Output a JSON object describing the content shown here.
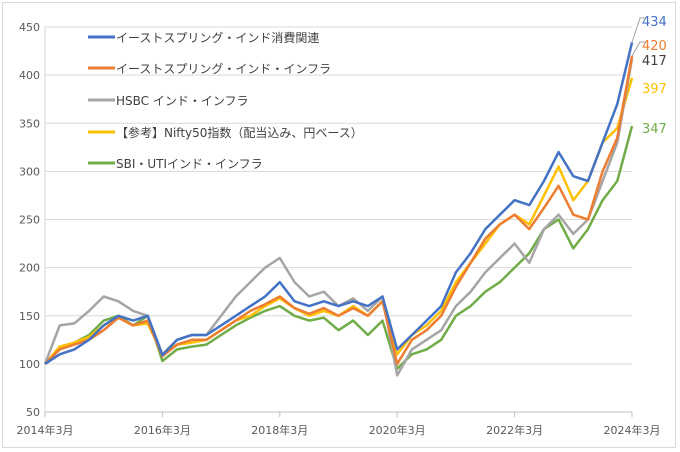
{
  "chart_data": {
    "type": "line",
    "title": "",
    "xlabel": "",
    "ylabel": "",
    "ylim": [
      50,
      450
    ],
    "yticks": [
      50,
      100,
      150,
      200,
      250,
      300,
      350,
      400,
      450
    ],
    "xtick_labels": [
      "2014年3月",
      "2016年3月",
      "2018年3月",
      "2020年3月",
      "2022年3月",
      "2024年3月"
    ],
    "x": [
      "2014-03",
      "2014-06",
      "2014-09",
      "2014-12",
      "2015-03",
      "2015-06",
      "2015-09",
      "2015-12",
      "2016-03",
      "2016-06",
      "2016-09",
      "2016-12",
      "2017-03",
      "2017-06",
      "2017-09",
      "2017-12",
      "2018-03",
      "2018-06",
      "2018-09",
      "2018-12",
      "2019-03",
      "2019-06",
      "2019-09",
      "2019-12",
      "2020-03",
      "2020-06",
      "2020-09",
      "2020-12",
      "2021-03",
      "2021-06",
      "2021-09",
      "2021-12",
      "2022-03",
      "2022-06",
      "2022-09",
      "2022-12",
      "2023-03",
      "2023-06",
      "2023-09",
      "2023-12",
      "2024-03"
    ],
    "grid": "horizontal",
    "legend_placement": "top-left",
    "series": [
      {
        "name": "イーストスプリング・インド消費関連",
        "color": "#4472c4",
        "end_label": "434",
        "values": [
          100,
          110,
          115,
          125,
          140,
          150,
          145,
          150,
          109,
          125,
          130,
          130,
          140,
          150,
          160,
          170,
          185,
          165,
          160,
          165,
          160,
          165,
          160,
          170,
          115,
          130,
          145,
          160,
          195,
          215,
          240,
          255,
          270,
          265,
          290,
          320,
          295,
          290,
          330,
          370,
          434
        ]
      },
      {
        "name": "イーストスプリング・インド・インフラ",
        "color": "#ed7d31",
        "end_label": "420",
        "values": [
          100,
          115,
          120,
          125,
          135,
          148,
          140,
          145,
          108,
          120,
          125,
          125,
          135,
          145,
          155,
          162,
          170,
          158,
          152,
          158,
          150,
          158,
          150,
          165,
          100,
          125,
          135,
          150,
          180,
          205,
          230,
          245,
          255,
          240,
          262,
          285,
          255,
          250,
          300,
          335,
          420
        ]
      },
      {
        "name": "HSBC インド・インフラ",
        "color": "#a5a5a5",
        "end_label": "417",
        "values": [
          100,
          140,
          142,
          155,
          170,
          165,
          155,
          150,
          110,
          125,
          130,
          130,
          150,
          170,
          185,
          200,
          210,
          185,
          170,
          175,
          160,
          168,
          155,
          170,
          88,
          115,
          125,
          135,
          160,
          175,
          195,
          210,
          225,
          205,
          240,
          255,
          235,
          250,
          290,
          330,
          417
        ]
      },
      {
        "name": "【参考】Nifty50指数（配当込み、円ベース）",
        "color": "#ffc000",
        "end_label": "397",
        "values": [
          100,
          118,
          122,
          128,
          140,
          148,
          140,
          142,
          110,
          120,
          122,
          125,
          135,
          145,
          150,
          160,
          168,
          158,
          150,
          155,
          150,
          160,
          150,
          165,
          110,
          130,
          140,
          155,
          185,
          205,
          225,
          245,
          255,
          245,
          275,
          305,
          270,
          290,
          330,
          345,
          397
        ]
      },
      {
        "name": "SBI・UTIインド・インフラ",
        "color": "#70ad47",
        "end_label": "347",
        "values": [
          100,
          115,
          122,
          130,
          145,
          150,
          140,
          150,
          103,
          115,
          118,
          120,
          130,
          140,
          148,
          155,
          160,
          150,
          145,
          148,
          135,
          145,
          130,
          145,
          95,
          110,
          115,
          125,
          150,
          160,
          175,
          185,
          200,
          215,
          240,
          250,
          220,
          240,
          270,
          290,
          347
        ]
      }
    ]
  }
}
